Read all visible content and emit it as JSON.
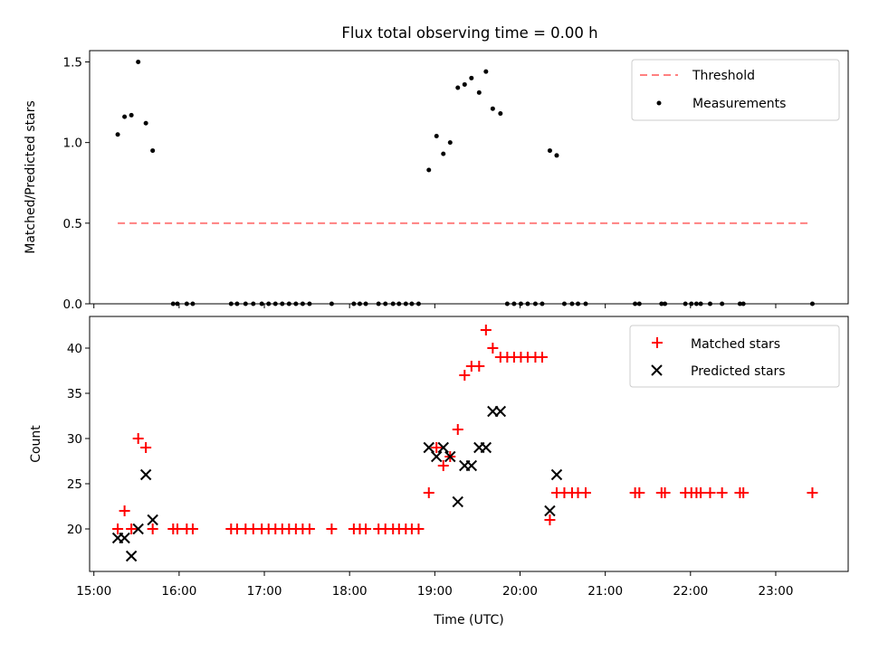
{
  "title": "Flux total observing time = 0.00 h",
  "chart_data": [
    {
      "type": "scatter",
      "ylabel": "Matched/Predicted stars",
      "xlabel": "",
      "x_unit": "hours UTC",
      "xlim": [
        14.95,
        23.85
      ],
      "ylim": [
        0.0,
        1.57
      ],
      "xticks": [
        15,
        16,
        17,
        18,
        19,
        20,
        21,
        22,
        23
      ],
      "yticks": [
        0.0,
        0.5,
        1.0,
        1.5
      ],
      "ytick_labels": [
        "0.0",
        "0.5",
        "1.0",
        "1.5"
      ],
      "legend_position": "top-right",
      "threshold": {
        "name": "Threshold",
        "y": 0.5,
        "x": [
          15.28,
          23.42
        ],
        "color": "#ff8080",
        "style": "dashed"
      },
      "series": [
        {
          "name": "Measurements",
          "color": "#000000",
          "marker": "dot",
          "x": [
            15.28,
            15.36,
            15.44,
            15.52,
            15.61,
            15.69,
            15.93,
            15.98,
            16.09,
            16.16,
            16.61,
            16.68,
            16.78,
            16.87,
            16.97,
            17.05,
            17.13,
            17.21,
            17.29,
            17.37,
            17.45,
            17.53,
            17.79,
            18.05,
            18.12,
            18.19,
            18.34,
            18.42,
            18.51,
            18.58,
            18.66,
            18.73,
            18.81,
            18.93,
            19.02,
            19.1,
            19.18,
            19.27,
            19.35,
            19.43,
            19.52,
            19.6,
            19.68,
            19.77,
            19.85,
            19.93,
            20.01,
            20.09,
            20.18,
            20.26,
            20.35,
            20.43,
            20.52,
            20.61,
            20.68,
            20.77,
            21.35,
            21.4,
            21.66,
            21.7,
            21.94,
            22.01,
            22.07,
            22.12,
            22.23,
            22.37,
            22.58,
            22.62,
            23.43
          ],
          "y": [
            1.05,
            1.16,
            1.17,
            1.5,
            1.12,
            0.95,
            0,
            0,
            0,
            0,
            0,
            0,
            0,
            0,
            0,
            0,
            0,
            0,
            0,
            0,
            0,
            0,
            0,
            0,
            0,
            0,
            0,
            0,
            0,
            0,
            0,
            0,
            0,
            0.83,
            1.04,
            0.93,
            1.0,
            1.34,
            1.36,
            1.4,
            1.31,
            1.44,
            1.21,
            1.18,
            0,
            0,
            0,
            0,
            0,
            0,
            0.95,
            0.92,
            0,
            0,
            0,
            0,
            0,
            0,
            0,
            0,
            0,
            0,
            0,
            0,
            0,
            0,
            0,
            0,
            0
          ]
        }
      ]
    },
    {
      "type": "scatter",
      "ylabel": "Count",
      "xlabel": "Time (UTC)",
      "x_unit": "hours UTC",
      "xlim": [
        14.95,
        23.85
      ],
      "ylim": [
        15.3,
        43.5
      ],
      "xticks": [
        15,
        16,
        17,
        18,
        19,
        20,
        21,
        22,
        23
      ],
      "xtick_labels": [
        "15:00",
        "16:00",
        "17:00",
        "18:00",
        "19:00",
        "20:00",
        "21:00",
        "22:00",
        "23:00"
      ],
      "yticks": [
        20,
        25,
        30,
        35,
        40
      ],
      "ytick_labels": [
        "20",
        "25",
        "30",
        "35",
        "40"
      ],
      "legend_position": "top-right",
      "series": [
        {
          "name": "Matched stars",
          "color": "#ff0000",
          "marker": "plus",
          "x": [
            15.28,
            15.36,
            15.44,
            15.52,
            15.61,
            15.69,
            15.93,
            15.98,
            16.09,
            16.16,
            16.61,
            16.68,
            16.78,
            16.87,
            16.97,
            17.05,
            17.13,
            17.21,
            17.29,
            17.37,
            17.45,
            17.53,
            17.79,
            18.05,
            18.12,
            18.19,
            18.34,
            18.42,
            18.51,
            18.58,
            18.66,
            18.73,
            18.81,
            18.93,
            19.02,
            19.1,
            19.18,
            19.27,
            19.35,
            19.43,
            19.52,
            19.6,
            19.68,
            19.77,
            19.85,
            19.93,
            20.01,
            20.09,
            20.18,
            20.26,
            20.35,
            20.43,
            20.52,
            20.61,
            20.68,
            20.77,
            21.35,
            21.4,
            21.66,
            21.7,
            21.94,
            22.01,
            22.07,
            22.12,
            22.23,
            22.37,
            22.58,
            22.62,
            23.43
          ],
          "y": [
            20,
            22,
            20,
            30,
            29,
            20,
            20,
            20,
            20,
            20,
            20,
            20,
            20,
            20,
            20,
            20,
            20,
            20,
            20,
            20,
            20,
            20,
            20,
            20,
            20,
            20,
            20,
            20,
            20,
            20,
            20,
            20,
            20,
            24,
            29,
            27,
            28,
            31,
            37,
            38,
            38,
            42,
            40,
            39,
            39,
            39,
            39,
            39,
            39,
            39,
            21,
            24,
            24,
            24,
            24,
            24,
            24,
            24,
            24,
            24,
            24,
            24,
            24,
            24,
            24,
            24,
            24,
            24,
            24
          ]
        },
        {
          "name": "Predicted stars",
          "color": "#000000",
          "marker": "x",
          "x": [
            15.28,
            15.36,
            15.44,
            15.52,
            15.61,
            15.69,
            18.93,
            19.02,
            19.1,
            19.18,
            19.27,
            19.35,
            19.43,
            19.52,
            19.6,
            19.68,
            19.77,
            20.35,
            20.43
          ],
          "y": [
            19,
            19,
            17,
            20,
            26,
            21,
            29,
            28,
            29,
            28,
            23,
            27,
            27,
            29,
            29,
            33,
            33,
            22,
            26
          ]
        }
      ]
    }
  ]
}
